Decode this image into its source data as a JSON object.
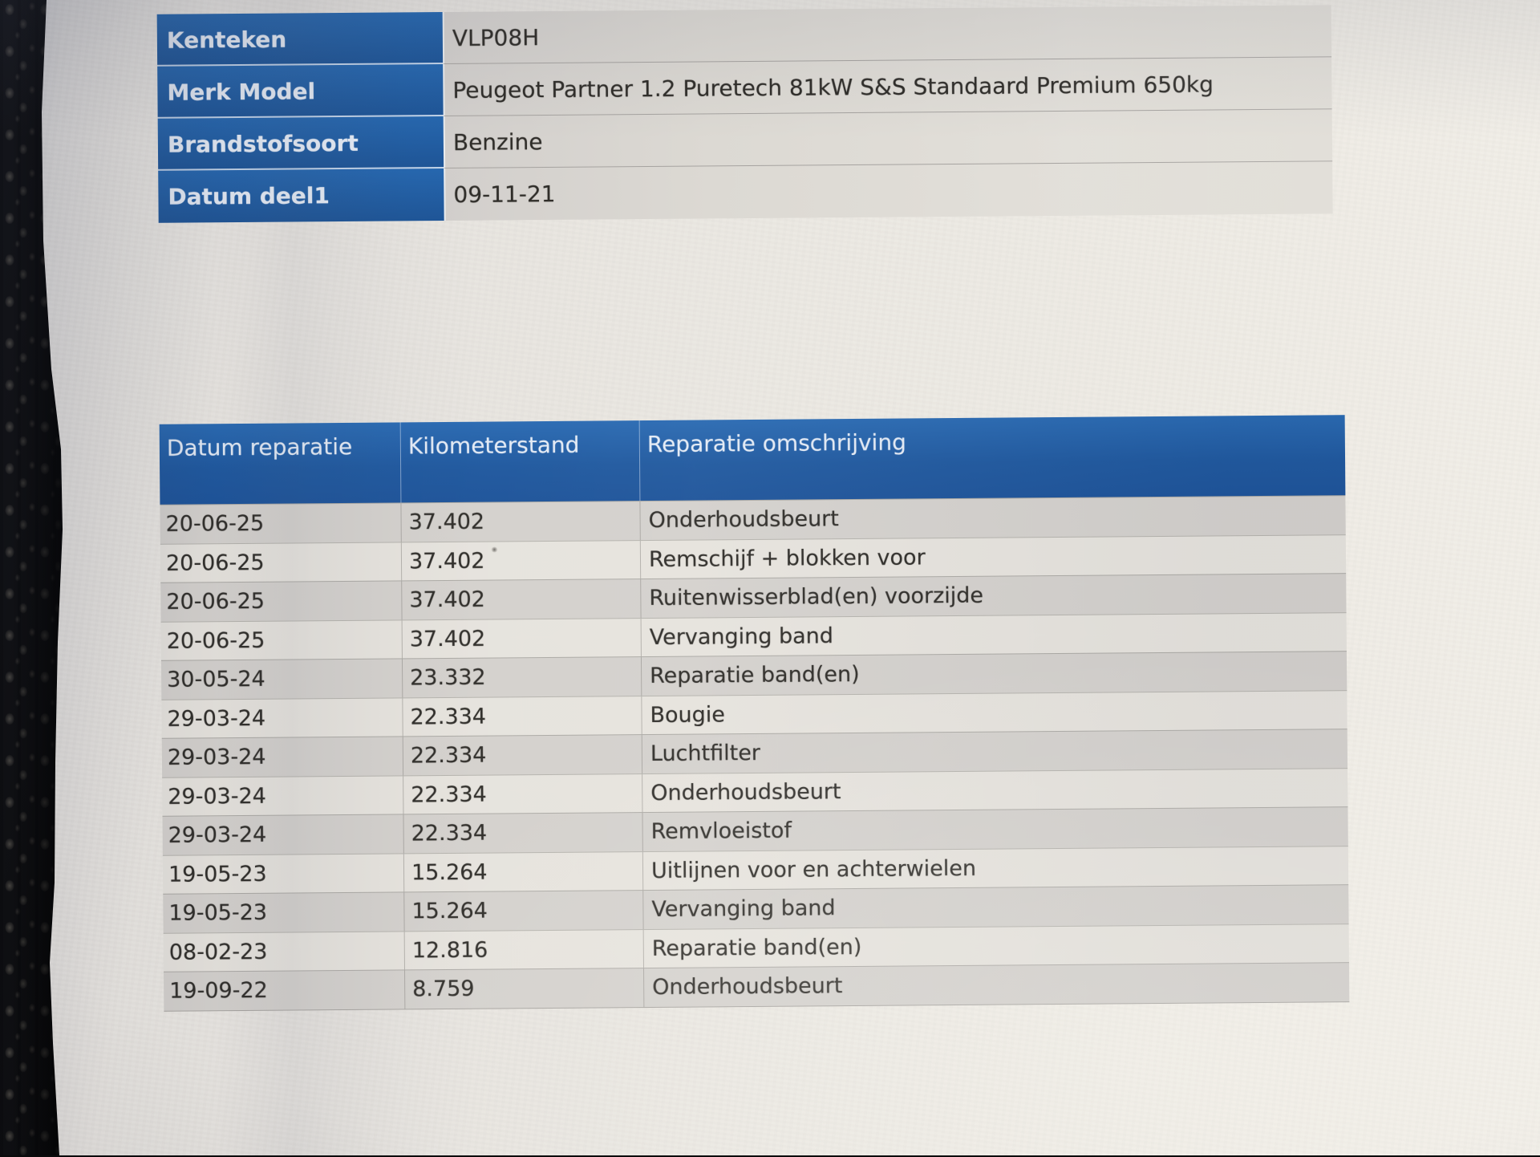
{
  "vehicle_info": {
    "rows": [
      {
        "label": "Kenteken",
        "value": "VLP08H"
      },
      {
        "label": "Merk Model",
        "value": "Peugeot Partner 1.2 Puretech 81kW S&S Standaard Premium 650kg"
      },
      {
        "label": "Brandstofsoort",
        "value": "Benzine"
      },
      {
        "label": "Datum deel1",
        "value": "09-11-21"
      }
    ]
  },
  "repairs_table": {
    "columns": [
      "Datum reparatie",
      "Kilometerstand",
      "Reparatie omschrijving"
    ],
    "rows": [
      [
        "20-06-25",
        "37.402",
        "Onderhoudsbeurt"
      ],
      [
        "20-06-25",
        "37.402",
        "Remschijf + blokken voor"
      ],
      [
        "20-06-25",
        "37.402",
        "Ruitenwisserblad(en) voorzijde"
      ],
      [
        "20-06-25",
        "37.402",
        "Vervanging band"
      ],
      [
        "30-05-24",
        "23.332",
        "Reparatie band(en)"
      ],
      [
        "29-03-24",
        "22.334",
        "Bougie"
      ],
      [
        "29-03-24",
        "22.334",
        "Luchtfilter"
      ],
      [
        "29-03-24",
        "22.334",
        "Onderhoudsbeurt"
      ],
      [
        "29-03-24",
        "22.334",
        "Remvloeistof"
      ],
      [
        "19-05-23",
        "15.264",
        "Uitlijnen voor en achterwielen"
      ],
      [
        "19-05-23",
        "15.264",
        "Vervanging band"
      ],
      [
        "08-02-23",
        "12.816",
        "Reparatie band(en)"
      ],
      [
        "19-09-22",
        "8.759",
        "Onderhoudsbeurt"
      ]
    ]
  },
  "colors": {
    "table_header_blue": "#20599f",
    "label_column_blue": "#2160a3",
    "row_stripe_gray": "#d4d1cd",
    "row_stripe_light": "#e6e3dd",
    "paper": "#ebe8e2",
    "text_dark": "#302e2a",
    "header_text": "#e4ebf5"
  }
}
